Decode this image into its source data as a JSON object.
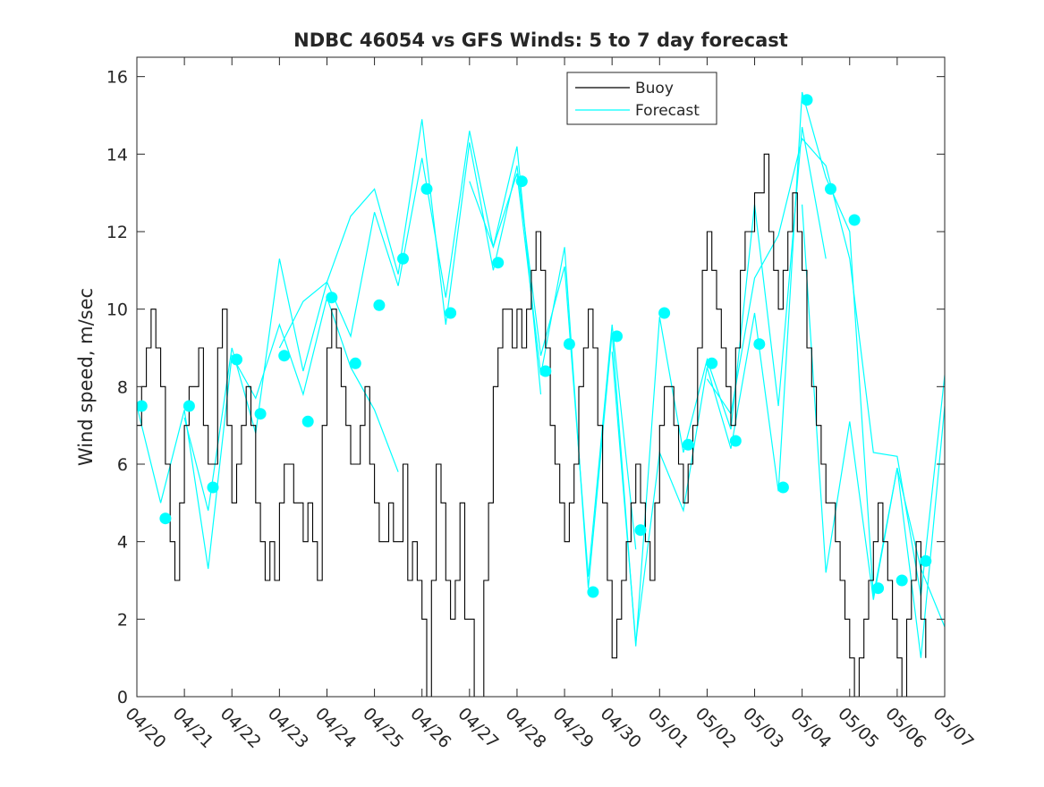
{
  "chart_data": {
    "type": "line",
    "title": "NDBC 46054 vs GFS Winds: 5 to 7 day forecast",
    "xlabel": "",
    "ylabel": "Wind speed, m/sec",
    "xlim": [
      0,
      17
    ],
    "ylim": [
      0,
      16.5
    ],
    "x_unit": "days from 04/20",
    "x_ticks": [
      0,
      1,
      2,
      3,
      4,
      5,
      6,
      7,
      8,
      9,
      10,
      11,
      12,
      13,
      14,
      15,
      16,
      17
    ],
    "x_tick_labels": [
      "04/20",
      "04/21",
      "04/22",
      "04/23",
      "04/24",
      "04/25",
      "04/26",
      "04/27",
      "04/28",
      "04/29",
      "04/30",
      "05/01",
      "05/02",
      "05/03",
      "05/04",
      "05/05",
      "05/06",
      "05/07"
    ],
    "y_ticks": [
      0,
      2,
      4,
      6,
      8,
      10,
      12,
      14,
      16
    ],
    "y_tick_labels": [
      "0",
      "2",
      "4",
      "6",
      "8",
      "10",
      "12",
      "14",
      "16"
    ],
    "grid": false,
    "legend_position": "top-right",
    "colors": {
      "buoy": "#000000",
      "forecast": "#00ffff",
      "axes": "#262626"
    },
    "series": [
      {
        "name": "Buoy",
        "style": "step",
        "x": [
          0.0,
          0.1,
          0.2,
          0.3,
          0.4,
          0.5,
          0.6,
          0.7,
          0.8,
          0.9,
          1.0,
          1.1,
          1.2,
          1.3,
          1.4,
          1.5,
          1.6,
          1.7,
          1.8,
          1.9,
          2.0,
          2.1,
          2.2,
          2.3,
          2.4,
          2.5,
          2.6,
          2.7,
          2.8,
          2.9,
          3.0,
          3.1,
          3.2,
          3.3,
          3.4,
          3.5,
          3.6,
          3.7,
          3.8,
          3.9,
          4.0,
          4.1,
          4.2,
          4.3,
          4.4,
          4.5,
          4.6,
          4.7,
          4.8,
          4.9,
          5.0,
          5.1,
          5.2,
          5.3,
          5.4,
          5.5,
          5.6,
          5.7,
          5.8,
          5.9,
          6.0,
          6.1,
          6.2,
          6.3,
          6.4,
          6.5,
          6.6,
          6.7,
          6.8,
          6.9,
          7.0,
          7.1,
          7.2,
          7.3,
          7.4,
          7.5,
          7.6,
          7.7,
          7.8,
          7.9,
          8.0,
          8.1,
          8.2,
          8.3,
          8.4,
          8.5,
          8.6,
          8.7,
          8.8,
          8.9,
          9.0,
          9.1,
          9.2,
          9.3,
          9.4,
          9.5,
          9.6,
          9.7,
          9.8,
          9.9,
          10.0,
          10.1,
          10.2,
          10.3,
          10.4,
          10.5,
          10.6,
          10.7,
          10.8,
          10.9,
          11.0,
          11.1,
          11.2,
          11.3,
          11.4,
          11.5,
          11.6,
          11.7,
          11.8,
          11.9,
          12.0,
          12.1,
          12.2,
          12.3,
          12.4,
          12.5,
          12.6,
          12.7,
          12.8,
          12.9,
          13.0,
          13.1,
          13.2,
          13.3,
          13.4,
          13.5,
          13.6,
          13.7,
          13.8,
          13.9,
          14.0,
          14.1,
          14.2,
          14.3,
          14.4,
          14.5,
          14.6,
          14.7,
          14.8,
          14.9,
          15.0,
          15.1,
          15.2,
          15.3,
          15.4,
          15.5,
          15.6,
          15.7,
          15.8,
          15.9,
          16.0,
          16.1,
          16.2,
          16.3,
          16.4,
          16.5,
          16.6
        ],
        "values": [
          7,
          8,
          9,
          10,
          9,
          8,
          6,
          4,
          3,
          5,
          7,
          8,
          8,
          9,
          7,
          6,
          6,
          9,
          10,
          7,
          5,
          6,
          7,
          8,
          7,
          5,
          4,
          3,
          4,
          3,
          5,
          6,
          6,
          5,
          5,
          4,
          5,
          4,
          3,
          7,
          9,
          10,
          9,
          8,
          7,
          6,
          6,
          7,
          8,
          6,
          5,
          4,
          4,
          5,
          4,
          4,
          6,
          3,
          4,
          3,
          2,
          0,
          3,
          6,
          5,
          3,
          2,
          3,
          5,
          2,
          2,
          0,
          0,
          3,
          5,
          8,
          9,
          10,
          10,
          9,
          10,
          9,
          10,
          11,
          12,
          11,
          9,
          7,
          6,
          5,
          4,
          5,
          6,
          8,
          9,
          10,
          9,
          7,
          5,
          3,
          1,
          2,
          3,
          4,
          5,
          6,
          5,
          4,
          3,
          5,
          7,
          8,
          8,
          7,
          6,
          5,
          6,
          7,
          9,
          11,
          12,
          11,
          10,
          9,
          8,
          7,
          9,
          11,
          12,
          12,
          13,
          13,
          14,
          12,
          11,
          10,
          11,
          12,
          13,
          12,
          11,
          9,
          8,
          7,
          6,
          5,
          5,
          4,
          3,
          2,
          1,
          0,
          1,
          2,
          3,
          4,
          5,
          4,
          3,
          2,
          1,
          0,
          2,
          3,
          4,
          2,
          1
        ],
        "values_note": "",
        "extra_x": [],
        "extra_values": []
      },
      {
        "name": "Forecast",
        "style": "lines",
        "runs": [
          {
            "x": [
              0.0,
              0.5,
              1.0,
              1.5,
              2.0,
              2.5,
              3.0,
              3.5,
              4.0,
              4.5,
              5.0,
              5.5
            ],
            "values": [
              7.5,
              5.0,
              7.4,
              3.3,
              8.8,
              7.7,
              9.6,
              7.8,
              10.3,
              8.5,
              7.4,
              5.8
            ]
          },
          {
            "x": [
              1.0,
              1.5,
              2.0,
              2.5,
              3.0,
              3.5,
              4.0,
              4.5,
              5.0,
              5.5,
              6.0,
              6.5,
              7.0,
              7.5,
              8.0,
              8.5
            ],
            "values": [
              7.2,
              4.8,
              9.0,
              6.8,
              11.3,
              8.4,
              10.7,
              9.3,
              12.5,
              10.6,
              13.9,
              10.3,
              14.6,
              11.6,
              14.2,
              7.8
            ]
          },
          {
            "x": [
              3.0,
              3.5,
              4.0,
              4.5,
              5.0,
              5.5,
              6.0,
              6.5,
              7.0,
              7.5,
              8.0,
              8.5,
              9.0,
              9.5,
              10.0,
              10.5
            ],
            "values": [
              9.0,
              10.2,
              10.7,
              12.4,
              13.1,
              10.9,
              14.9,
              9.6,
              14.3,
              11.0,
              13.7,
              8.8,
              11.1,
              3.1,
              9.6,
              3.8
            ]
          },
          {
            "x": [
              7.0,
              7.5,
              8.0,
              8.5,
              9.0,
              9.5,
              10.0,
              10.5,
              11.0,
              11.5,
              12.0,
              12.5,
              13.0,
              13.5,
              14.0,
              14.5
            ],
            "values": [
              13.3,
              11.6,
              13.5,
              8.3,
              11.6,
              2.8,
              9.4,
              1.3,
              9.8,
              6.3,
              8.7,
              6.9,
              12.7,
              7.5,
              14.7,
              11.3
            ]
          },
          {
            "x": [
              10.0,
              10.5,
              11.0,
              11.5,
              12.0,
              12.5,
              13.0,
              13.5,
              14.0,
              14.5,
              15.0,
              15.5,
              16.0,
              16.5,
              17.0
            ],
            "values": [
              8.9,
              1.4,
              6.3,
              4.8,
              8.5,
              6.4,
              9.9,
              5.3,
              15.6,
              13.4,
              12.0,
              2.6,
              5.9,
              3.3,
              1.8
            ]
          },
          {
            "x": [
              12.0,
              12.5,
              13.0,
              13.5,
              14.0,
              14.5,
              15.0,
              15.5,
              16.0,
              16.5,
              17.0
            ],
            "values": [
              8.2,
              7.3,
              10.8,
              11.9,
              14.4,
              13.7,
              11.3,
              6.3,
              6.2,
              2.6,
              8.3
            ]
          },
          {
            "x": [
              14.0,
              14.5,
              15.0,
              15.5,
              16.0,
              16.5,
              17.0
            ],
            "values": [
              12.7,
              3.2,
              7.1,
              2.5,
              5.9,
              1.0,
              7.5
            ]
          }
        ],
        "markers_x": [
          0.1,
          0.6,
          1.1,
          1.6,
          2.1,
          2.6,
          3.1,
          3.6,
          4.1,
          4.6,
          5.1,
          5.6,
          6.1,
          6.6,
          7.6,
          8.1,
          8.6,
          9.1,
          9.6,
          10.1,
          10.6,
          11.1,
          11.6,
          12.1,
          12.6,
          13.1,
          13.6,
          14.1,
          14.6,
          15.1,
          15.6,
          16.1,
          16.6
        ],
        "markers_y": [
          7.5,
          4.6,
          7.5,
          5.4,
          8.7,
          7.3,
          8.8,
          7.1,
          10.3,
          8.6,
          10.1,
          11.3,
          13.1,
          9.9,
          11.2,
          13.3,
          8.4,
          9.1,
          2.7,
          9.3,
          4.3,
          9.9,
          6.5,
          8.6,
          6.6,
          9.1,
          5.4,
          15.4,
          13.1,
          12.3,
          2.8,
          3.0,
          3.5
        ]
      }
    ]
  }
}
